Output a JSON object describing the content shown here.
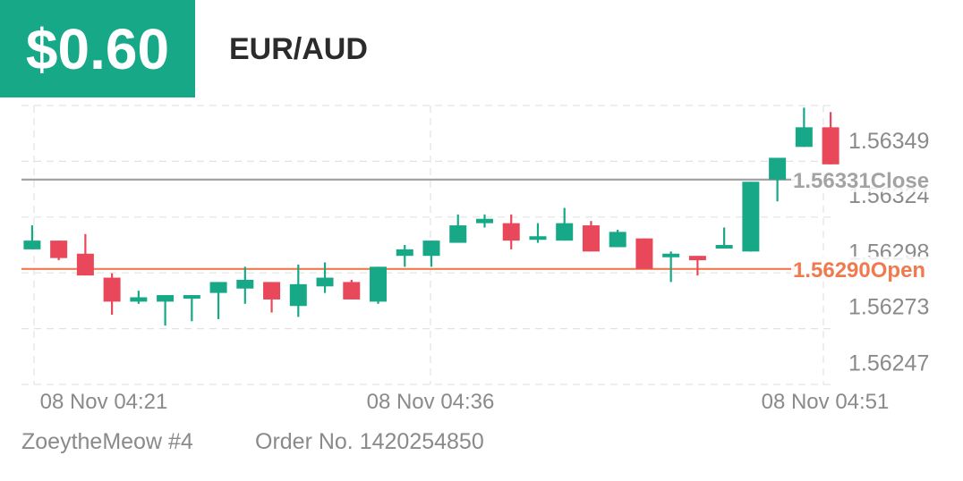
{
  "header": {
    "profit": "$0.60",
    "pair": "EUR/AUD"
  },
  "footer": {
    "user": "ZoeytheMeow #4",
    "order": "Order No. 1420254850"
  },
  "colors": {
    "up": "#16a887",
    "down": "#e8485a",
    "open_line": "#f07a4e",
    "close_line": "#a3a3a3",
    "grid": "#e3e3e3",
    "axis_text": "#8a8a8a"
  },
  "chart_data": {
    "type": "candlestick",
    "y_ticks": [
      "1.56349",
      "1.56324",
      "1.56298",
      "1.56273",
      "1.56247"
    ],
    "ylim": [
      1.56237,
      1.56365
    ],
    "x_ticks": [
      {
        "label": "08 Nov  04:21",
        "index": 0
      },
      {
        "label": "08 Nov  04:36",
        "index": 15
      },
      {
        "label": "08 Nov  04:51",
        "index": 30
      }
    ],
    "x_range": [
      -0.4,
      30.4
    ],
    "lines": [
      {
        "name": "close",
        "value": 1.56331,
        "label": "1.56331Close"
      },
      {
        "name": "open",
        "value": 1.5629,
        "label": "1.56290Open"
      }
    ],
    "candles": [
      {
        "open": 1.56299,
        "close": 1.56303,
        "high": 1.5631,
        "low": 1.56299
      },
      {
        "open": 1.56303,
        "close": 1.56295,
        "high": 1.56303,
        "low": 1.56294
      },
      {
        "open": 1.56297,
        "close": 1.56287,
        "high": 1.56306,
        "low": 1.56287
      },
      {
        "open": 1.56286,
        "close": 1.56275,
        "high": 1.56288,
        "low": 1.56269
      },
      {
        "open": 1.56275,
        "close": 1.56277,
        "high": 1.5628,
        "low": 1.56274
      },
      {
        "open": 1.56275,
        "close": 1.56278,
        "high": 1.56278,
        "low": 1.56264
      },
      {
        "open": 1.56277,
        "close": 1.56278,
        "high": 1.56278,
        "low": 1.56266
      },
      {
        "open": 1.56279,
        "close": 1.56284,
        "high": 1.56284,
        "low": 1.56267
      },
      {
        "open": 1.56281,
        "close": 1.56285,
        "high": 1.56291,
        "low": 1.56274
      },
      {
        "open": 1.56284,
        "close": 1.56276,
        "high": 1.56284,
        "low": 1.5627
      },
      {
        "open": 1.56273,
        "close": 1.56283,
        "high": 1.56292,
        "low": 1.56268
      },
      {
        "open": 1.56282,
        "close": 1.56286,
        "high": 1.56293,
        "low": 1.56279
      },
      {
        "open": 1.56284,
        "close": 1.56276,
        "high": 1.56285,
        "low": 1.56276
      },
      {
        "open": 1.56275,
        "close": 1.56291,
        "high": 1.56291,
        "low": 1.56274
      },
      {
        "open": 1.56296,
        "close": 1.56299,
        "high": 1.56301,
        "low": 1.56291
      },
      {
        "open": 1.56296,
        "close": 1.56303,
        "high": 1.56303,
        "low": 1.56291
      },
      {
        "open": 1.56302,
        "close": 1.5631,
        "high": 1.56315,
        "low": 1.56302
      },
      {
        "open": 1.56311,
        "close": 1.56313,
        "high": 1.56315,
        "low": 1.56309
      },
      {
        "open": 1.56311,
        "close": 1.56303,
        "high": 1.56315,
        "low": 1.56299
      },
      {
        "open": 1.56305,
        "close": 1.56305,
        "high": 1.56311,
        "low": 1.56302
      },
      {
        "open": 1.56303,
        "close": 1.56311,
        "high": 1.56318,
        "low": 1.56303
      },
      {
        "open": 1.5631,
        "close": 1.56298,
        "high": 1.56312,
        "low": 1.56298
      },
      {
        "open": 1.563,
        "close": 1.56307,
        "high": 1.56308,
        "low": 1.563
      },
      {
        "open": 1.56304,
        "close": 1.5629,
        "high": 1.56304,
        "low": 1.5629
      },
      {
        "open": 1.56297,
        "close": 1.56297,
        "high": 1.56298,
        "low": 1.56284
      },
      {
        "open": 1.56296,
        "close": 1.56294,
        "high": 1.56296,
        "low": 1.56287
      },
      {
        "open": 1.563,
        "close": 1.56301,
        "high": 1.56309,
        "low": 1.563
      },
      {
        "open": 1.56298,
        "close": 1.5633,
        "high": 1.5633,
        "low": 1.56298
      },
      {
        "open": 1.56331,
        "close": 1.56341,
        "high": 1.56341,
        "low": 1.56321
      },
      {
        "open": 1.56346,
        "close": 1.56355,
        "high": 1.56364,
        "low": 1.56346
      },
      {
        "open": 1.56355,
        "close": 1.56338,
        "high": 1.56362,
        "low": 1.56338
      }
    ]
  }
}
